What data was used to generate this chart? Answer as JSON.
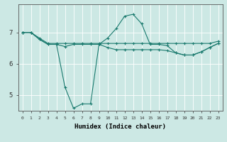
{
  "xlabel": "Humidex (Indice chaleur)",
  "ylabel": "",
  "background_color": "#cce8e4",
  "grid_color": "#ffffff",
  "line_color": "#1a7a6e",
  "x_values": [
    0,
    1,
    2,
    3,
    4,
    5,
    6,
    7,
    8,
    9,
    10,
    11,
    12,
    13,
    14,
    15,
    16,
    17,
    18,
    19,
    20,
    21,
    22,
    23
  ],
  "line1": [
    7.0,
    7.0,
    6.82,
    6.65,
    6.65,
    6.65,
    6.65,
    6.65,
    6.65,
    6.65,
    6.65,
    6.65,
    6.65,
    6.65,
    6.65,
    6.65,
    6.65,
    6.65,
    6.65,
    6.65,
    6.65,
    6.65,
    6.65,
    6.72
  ],
  "line2": [
    7.0,
    7.0,
    6.78,
    6.62,
    6.62,
    6.55,
    6.62,
    6.62,
    6.62,
    6.62,
    6.52,
    6.45,
    6.45,
    6.45,
    6.45,
    6.45,
    6.45,
    6.42,
    6.35,
    6.28,
    6.28,
    6.38,
    6.52,
    6.65
  ],
  "line3": [
    7.0,
    7.0,
    6.78,
    6.62,
    6.62,
    5.25,
    4.58,
    4.72,
    4.72,
    6.62,
    6.82,
    7.12,
    7.52,
    7.58,
    7.28,
    6.62,
    6.62,
    6.58,
    6.35,
    6.28,
    6.28,
    6.38,
    6.52,
    6.65
  ],
  "ylim": [
    4.5,
    7.9
  ],
  "yticks": [
    5,
    6,
    7
  ],
  "xlim": [
    -0.5,
    23.5
  ],
  "marker": "+",
  "markersize": 3,
  "linewidth": 0.8
}
